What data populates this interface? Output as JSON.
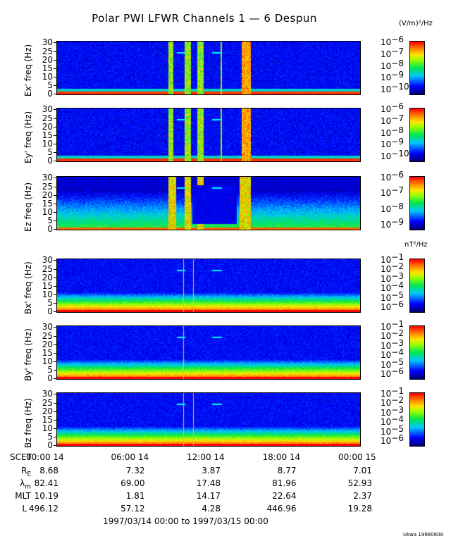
{
  "title": "Polar PWI LFWR Channels 1 — 6 Despun",
  "colors": {
    "background": "#ffffff",
    "colormap": [
      "#000080",
      "#0000ff",
      "#00ffff",
      "#00ff00",
      "#ffff00",
      "#ff8000",
      "#ff0000"
    ]
  },
  "chart_data": [
    {
      "type": "heatmap",
      "ylabel": "Ex' freq (Hz)",
      "yticks": [
        "0",
        "5",
        "10",
        "15",
        "20",
        "25",
        "30"
      ],
      "ylim": [
        0,
        30
      ],
      "xlim_hours": [
        0,
        24
      ],
      "colorbar": {
        "unit": "(V/m)²/Hz",
        "scale": "log",
        "exponents": [
          "-6",
          "-7",
          "-8",
          "-9",
          "-10"
        ]
      },
      "events_hours": [
        [
          8.8,
          9.2
        ],
        [
          10.1,
          10.6
        ],
        [
          11.1,
          11.6
        ],
        [
          12.9,
          13.05
        ],
        [
          14.6,
          15.3
        ]
      ]
    },
    {
      "type": "heatmap",
      "ylabel": "Ey' freq (Hz)",
      "yticks": [
        "0",
        "5",
        "10",
        "15",
        "20",
        "25",
        "30"
      ],
      "ylim": [
        0,
        30
      ],
      "xlim_hours": [
        0,
        24
      ],
      "colorbar": {
        "unit": "",
        "scale": "log",
        "exponents": [
          "-6",
          "-7",
          "-8",
          "-9",
          "-10"
        ]
      },
      "events_hours": [
        [
          8.8,
          9.2
        ],
        [
          10.1,
          10.6
        ],
        [
          11.1,
          11.6
        ],
        [
          12.9,
          13.05
        ],
        [
          14.6,
          15.3
        ]
      ]
    },
    {
      "type": "heatmap",
      "ylabel": "Ez freq (Hz)",
      "yticks": [
        "0",
        "5",
        "10",
        "15",
        "20",
        "25",
        "30"
      ],
      "ylim": [
        0,
        30
      ],
      "xlim_hours": [
        0,
        24
      ],
      "colorbar": {
        "unit": "",
        "scale": "log",
        "exponents": [
          "-6",
          "-7",
          "-8",
          "-9"
        ]
      },
      "events_hours": [
        [
          8.8,
          9.4
        ],
        [
          10.1,
          10.6
        ],
        [
          11.1,
          11.6
        ],
        [
          14.4,
          15.3
        ]
      ]
    },
    {
      "type": "heatmap",
      "ylabel": "Bx' freq (Hz)",
      "yticks": [
        "0",
        "5",
        "10",
        "15",
        "20",
        "25",
        "30"
      ],
      "ylim": [
        0,
        30
      ],
      "xlim_hours": [
        0,
        24
      ],
      "colorbar": {
        "unit": "nT²/Hz",
        "scale": "log",
        "exponents": [
          "-1",
          "-2",
          "-3",
          "-4",
          "-5",
          "-6"
        ]
      },
      "events_hours": [
        [
          9.95,
          10.0
        ],
        [
          10.75,
          10.8
        ]
      ]
    },
    {
      "type": "heatmap",
      "ylabel": "By' freq (Hz)",
      "yticks": [
        "0",
        "5",
        "10",
        "15",
        "20",
        "25",
        "30"
      ],
      "ylim": [
        0,
        30
      ],
      "xlim_hours": [
        0,
        24
      ],
      "colorbar": {
        "unit": "",
        "scale": "log",
        "exponents": [
          "-1",
          "-2",
          "-3",
          "-4",
          "-5",
          "-6"
        ]
      },
      "events_hours": [
        [
          9.95,
          10.0
        ]
      ]
    },
    {
      "type": "heatmap",
      "ylabel": "Bz freq (Hz)",
      "yticks": [
        "0",
        "5",
        "10",
        "15",
        "20",
        "25",
        "30"
      ],
      "ylim": [
        0,
        30
      ],
      "xlim_hours": [
        0,
        24
      ],
      "colorbar": {
        "unit": "",
        "scale": "log",
        "exponents": [
          "-1",
          "-2",
          "-3",
          "-4",
          "-5",
          "-6"
        ]
      },
      "events_hours": [
        [
          9.95,
          10.0
        ],
        [
          10.75,
          10.8
        ]
      ]
    }
  ],
  "time_axis": {
    "label": "SCET",
    "ticks": [
      "00:00 14",
      "06:00 14",
      "12:00 14",
      "18:00 14",
      "00:00 15"
    ]
  },
  "ephemeris": [
    {
      "label": "R",
      "sub": "E",
      "values": [
        "8.68",
        "7.32",
        "3.87",
        "8.77",
        "7.01"
      ]
    },
    {
      "label": "λ",
      "sub": "m",
      "values": [
        "82.41",
        "69.00",
        "17.48",
        "81.96",
        "52.93"
      ]
    },
    {
      "label": "MLT",
      "sub": "",
      "values": [
        "10.19",
        "1.81",
        "14.17",
        "22.64",
        "2.37"
      ]
    },
    {
      "label": "L",
      "sub": "",
      "values": [
        "496.12",
        "57.12",
        "4.28",
        "446.96",
        "19.28"
      ]
    }
  ],
  "date_range": "1997/03/14 00:00 to 1997/03/15 00:00",
  "footer": "Ukwa 19980808"
}
